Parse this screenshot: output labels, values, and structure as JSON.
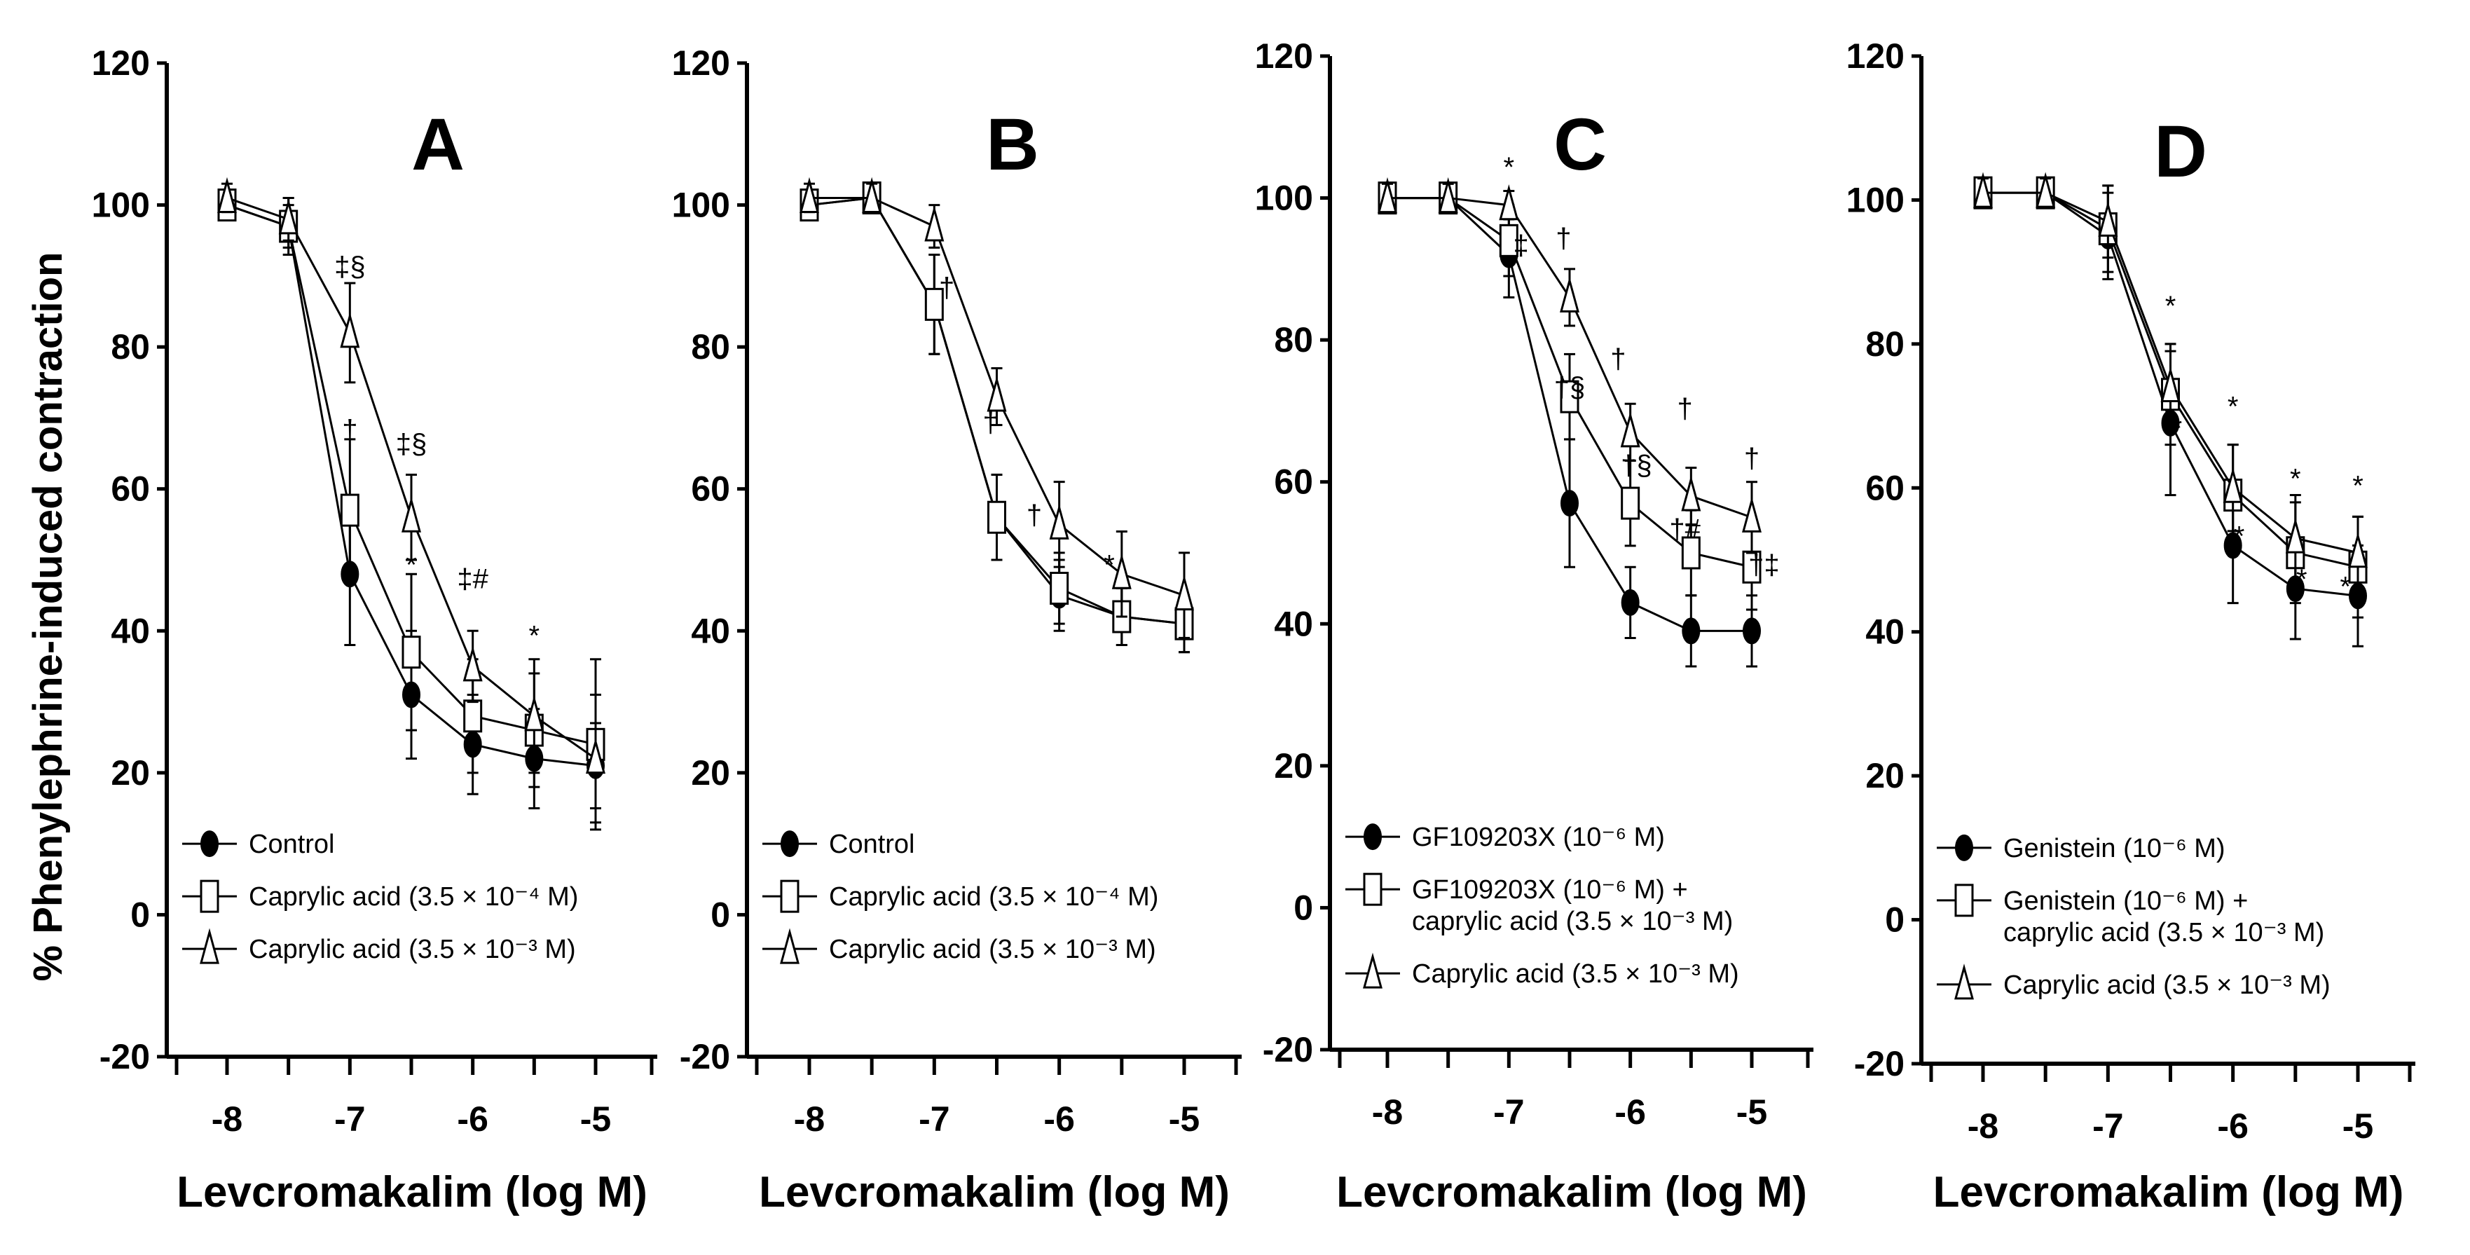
{
  "figure": {
    "ylabel": "% Phenylephrine-induced contraction",
    "xlabel": "Levcromakalim (log M)"
  },
  "chart_data": [
    {
      "type": "line",
      "panel": "A",
      "ylim": [
        -20,
        120
      ],
      "yticks": [
        -20,
        0,
        20,
        40,
        60,
        80,
        100,
        120
      ],
      "xticks": [
        -8,
        -7,
        -6,
        -5
      ],
      "xlabel": "Levcromakalim (log M)",
      "ylabel": "% Phenylephrine-induced contraction",
      "x": [
        -8,
        -7.5,
        -7,
        -6.5,
        -6,
        -5.5,
        -5
      ],
      "series": [
        {
          "name": "Control",
          "marker": "circle",
          "values": [
            100,
            97,
            48,
            31,
            24,
            22,
            21
          ],
          "err": [
            2,
            3,
            10,
            9,
            7,
            7,
            6
          ]
        },
        {
          "name": "Caprylic acid (3.5 × 10⁻⁴ M)",
          "marker": "square",
          "values": [
            100,
            97,
            57,
            37,
            28,
            26,
            24
          ],
          "err": [
            2,
            4,
            10,
            11,
            8,
            8,
            12
          ]
        },
        {
          "name": "Caprylic acid (3.5 × 10⁻³ M)",
          "marker": "triangle",
          "values": [
            101,
            98,
            82,
            56,
            35,
            28,
            22
          ],
          "err": [
            2,
            3,
            7,
            6,
            5,
            8,
            9
          ]
        }
      ],
      "annotations": [
        {
          "text": "‡§",
          "x": -7,
          "y": 90
        },
        {
          "text": "†",
          "x": -7,
          "y": 67
        },
        {
          "text": "‡§",
          "x": -6.5,
          "y": 65
        },
        {
          "text": "*",
          "x": -6.5,
          "y": 48
        },
        {
          "text": "‡#",
          "x": -6,
          "y": 46
        },
        {
          "text": "*",
          "x": -5.5,
          "y": 38
        }
      ],
      "legend": "bottom-left"
    },
    {
      "type": "line",
      "panel": "B",
      "ylim": [
        -20,
        120
      ],
      "yticks": [
        -20,
        0,
        20,
        40,
        60,
        80,
        100,
        120
      ],
      "xticks": [
        -8,
        -7,
        -6,
        -5
      ],
      "xlabel": "Levcromakalim (log M)",
      "ylabel": "",
      "x": [
        -8,
        -7.5,
        -7,
        -6.5,
        -6,
        -5.5,
        -5
      ],
      "series": [
        {
          "name": "Control",
          "marker": "circle",
          "values": [
            100,
            101,
            86,
            56,
            45,
            42,
            41
          ],
          "err": [
            2,
            2,
            7,
            6,
            5,
            4,
            4
          ]
        },
        {
          "name": "Caprylic acid (3.5 × 10⁻⁴ M)",
          "marker": "square",
          "values": [
            100,
            101,
            86,
            56,
            46,
            42,
            41
          ],
          "err": [
            2,
            2,
            7,
            6,
            5,
            4,
            4
          ]
        },
        {
          "name": "Caprylic acid (3.5 × 10⁻³ M)",
          "marker": "triangle",
          "values": [
            101,
            101,
            97,
            73,
            55,
            48,
            45
          ],
          "err": [
            2,
            2,
            3,
            4,
            6,
            6,
            6
          ]
        }
      ],
      "annotations": [
        {
          "text": "†",
          "x": -6.9,
          "y": 87
        },
        {
          "text": "†",
          "x": -6.55,
          "y": 68
        },
        {
          "text": "†",
          "x": -6.2,
          "y": 55
        },
        {
          "text": "*",
          "x": -5.6,
          "y": 48
        }
      ],
      "legend": "bottom-left"
    },
    {
      "type": "line",
      "panel": "C",
      "ylim": [
        -20,
        120
      ],
      "yticks": [
        -20,
        0,
        20,
        40,
        60,
        80,
        100,
        120
      ],
      "xticks": [
        -8,
        -7,
        -6,
        -5
      ],
      "xlabel": "Levcromakalim (log M)",
      "ylabel": "",
      "x": [
        -8,
        -7.5,
        -7,
        -6.5,
        -6,
        -5.5,
        -5
      ],
      "series": [
        {
          "name": "GF109203X (10⁻⁶ M)",
          "marker": "circle",
          "values": [
            100,
            100,
            92,
            57,
            43,
            39,
            39
          ],
          "err": [
            2,
            2,
            6,
            9,
            5,
            5,
            5
          ]
        },
        {
          "name": "GF109203X (10⁻⁶ M) + caprylic acid (3.5 × 10⁻³ M)",
          "marker": "square",
          "values": [
            100,
            100,
            94,
            72,
            57,
            50,
            48
          ],
          "err": [
            2,
            2,
            5,
            6,
            6,
            6,
            6
          ]
        },
        {
          "name": "Caprylic acid (3.5 × 10⁻³ M)",
          "marker": "triangle",
          "values": [
            100,
            100,
            99,
            86,
            67,
            58,
            55
          ],
          "err": [
            2,
            2,
            2,
            4,
            4,
            4,
            5
          ]
        }
      ],
      "annotations": [
        {
          "text": "*",
          "x": -7,
          "y": 103
        },
        {
          "text": "‡",
          "x": -6.9,
          "y": 92
        },
        {
          "text": "†",
          "x": -6.55,
          "y": 93
        },
        {
          "text": "†§",
          "x": -6.5,
          "y": 72
        },
        {
          "text": "†",
          "x": -6.1,
          "y": 76
        },
        {
          "text": "†§",
          "x": -5.95,
          "y": 61
        },
        {
          "text": "†",
          "x": -5.55,
          "y": 69
        },
        {
          "text": "†#",
          "x": -5.55,
          "y": 52
        },
        {
          "text": "†",
          "x": -5,
          "y": 62
        },
        {
          "text": "†‡",
          "x": -4.9,
          "y": 47
        }
      ],
      "legend": "bottom-left"
    },
    {
      "type": "line",
      "panel": "D",
      "ylim": [
        -20,
        120
      ],
      "yticks": [
        -20,
        0,
        20,
        40,
        60,
        80,
        100,
        120
      ],
      "xticks": [
        -8,
        -7,
        -6,
        -5
      ],
      "xlabel": "Levcromakalim (log M)",
      "ylabel": "",
      "x": [
        -8,
        -7.5,
        -7,
        -6.5,
        -6,
        -5.5,
        -5
      ],
      "series": [
        {
          "name": "Genistein (10⁻⁶ M)",
          "marker": "circle",
          "values": [
            101,
            101,
            95,
            69,
            52,
            46,
            45
          ],
          "err": [
            2,
            2,
            6,
            10,
            8,
            7,
            7
          ]
        },
        {
          "name": "Genistein (10⁻⁶ M) + caprylic acid (3.5 × 10⁻³ M)",
          "marker": "square",
          "values": [
            101,
            101,
            96,
            73,
            59,
            51,
            49
          ],
          "err": [
            2,
            2,
            6,
            7,
            7,
            7,
            7
          ]
        },
        {
          "name": "Caprylic acid (3.5 × 10⁻³ M)",
          "marker": "triangle",
          "values": [
            101,
            101,
            97,
            74,
            60,
            53,
            51
          ],
          "err": [
            2,
            2,
            5,
            6,
            6,
            6,
            5
          ]
        }
      ],
      "annotations": [
        {
          "text": "*",
          "x": -6.5,
          "y": 84
        },
        {
          "text": "*",
          "x": -6.45,
          "y": 67
        },
        {
          "text": "*",
          "x": -6,
          "y": 70
        },
        {
          "text": "*",
          "x": -5.95,
          "y": 52
        },
        {
          "text": "*",
          "x": -5.5,
          "y": 60
        },
        {
          "text": "*",
          "x": -5.45,
          "y": 46
        },
        {
          "text": "*",
          "x": -5,
          "y": 59
        },
        {
          "text": "*",
          "x": -5.1,
          "y": 45
        }
      ],
      "legend": "bottom-left"
    }
  ]
}
